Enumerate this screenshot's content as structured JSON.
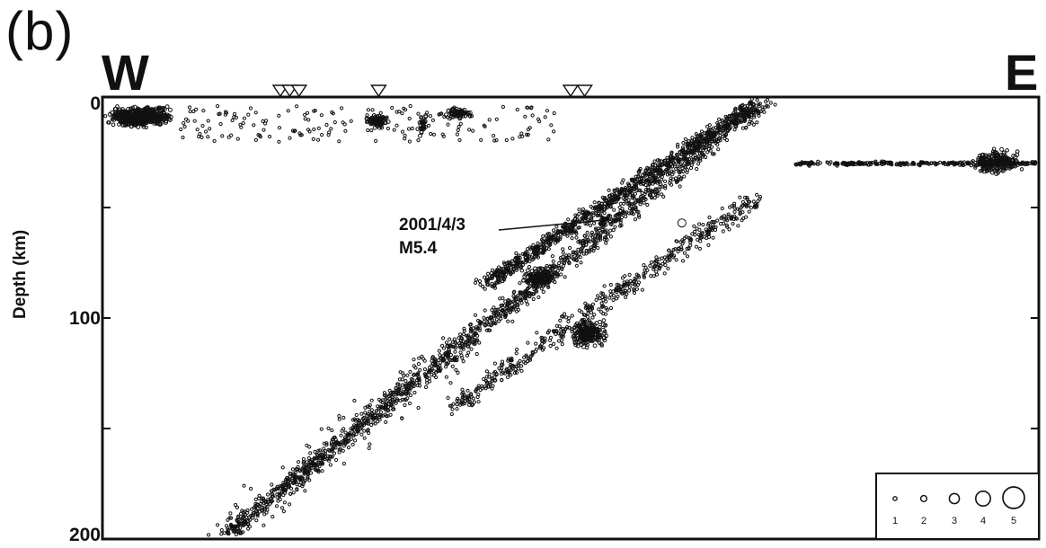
{
  "figure": {
    "panel_label": "(b)",
    "west_label": "W",
    "east_label": "E"
  },
  "annotation": {
    "line1": "2001/4/3",
    "line2": "M5.4"
  },
  "legend": {
    "sizes": [
      "1",
      "2",
      "3",
      "4",
      "5"
    ]
  },
  "chart_data": {
    "type": "scatter",
    "title": "",
    "xlabel": "",
    "ylabel": "Depth (km)",
    "ylim": [
      0,
      200
    ],
    "y_inverted": true,
    "yticks": [
      "0",
      "100",
      "200"
    ],
    "stations_x": [
      0.19,
      0.2,
      0.21,
      0.295,
      0.5,
      0.515
    ],
    "clusters": [
      {
        "name": "shallow crust west",
        "x": [
          0.0,
          0.1
        ],
        "depth": [
          2,
          25
        ],
        "density": "dense"
      },
      {
        "name": "shallow crust central",
        "x": [
          0.1,
          0.42
        ],
        "depth": [
          2,
          20
        ],
        "density": "moderate"
      },
      {
        "name": "dipping slab upper plane",
        "x": [
          0.25,
          0.74
        ],
        "depth": [
          0,
          200
        ],
        "density": "dense"
      },
      {
        "name": "dipping slab lower plane",
        "x": [
          0.47,
          0.7
        ],
        "depth": [
          55,
          130
        ],
        "density": "moderate"
      },
      {
        "name": "horizontal band east",
        "x": [
          0.74,
          1.0
        ],
        "depth": [
          27,
          30
        ],
        "density": "dense"
      }
    ],
    "highlight_event": {
      "date": "2001/4/3",
      "magnitude": 5.4,
      "x": 0.59,
      "depth": 57
    },
    "legend_magnitudes": [
      1,
      2,
      3,
      4,
      5
    ]
  }
}
